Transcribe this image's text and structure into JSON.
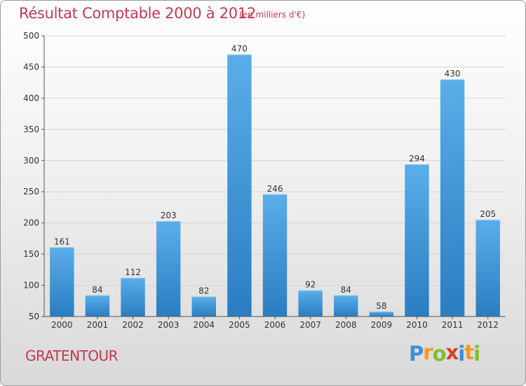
{
  "chart_data": {
    "type": "bar",
    "title": "Résultat Comptable 2000 à 2012",
    "subtitle": "(en milliers d'€)",
    "categories": [
      "2000",
      "2001",
      "2002",
      "2003",
      "2004",
      "2005",
      "2006",
      "2007",
      "2008",
      "2009",
      "2010",
      "2011",
      "2012"
    ],
    "values": [
      161,
      84,
      112,
      203,
      82,
      470,
      246,
      92,
      84,
      58,
      294,
      430,
      205
    ],
    "ylim": [
      50,
      500
    ],
    "yticks": [
      50,
      100,
      150,
      200,
      250,
      300,
      350,
      400,
      450,
      500
    ],
    "grid": true,
    "bar_color": "#3f95d8"
  },
  "place_name": "GRATENTOUR",
  "logo": {
    "letters": [
      "P",
      "r",
      "o",
      "x",
      "i",
      "t",
      "i"
    ],
    "colors": [
      "#3a8fd6",
      "#f29a1f",
      "#7cbf2a",
      "#e23b2e",
      "#3a8fd6",
      "#f29a1f",
      "#7cbf2a"
    ]
  }
}
